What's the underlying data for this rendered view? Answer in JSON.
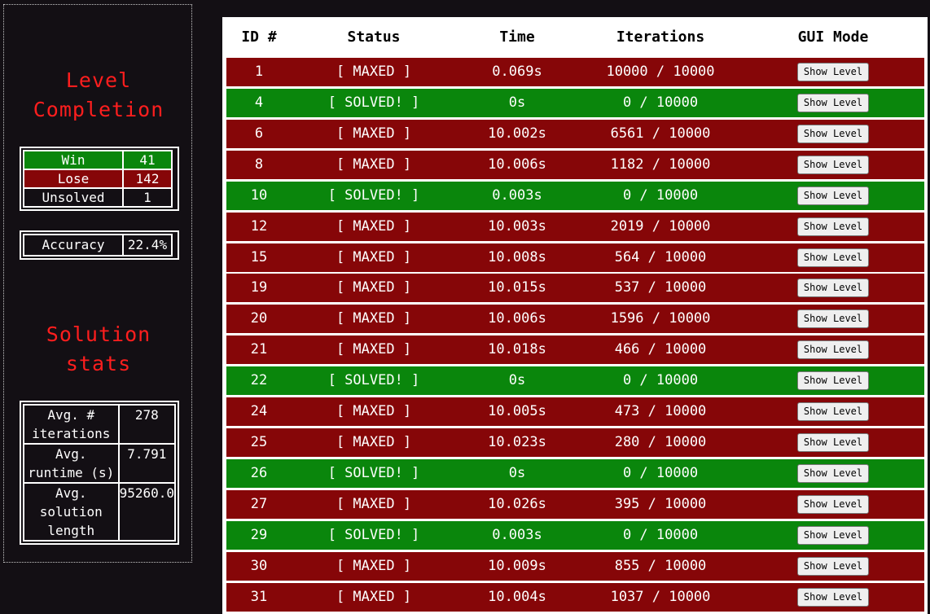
{
  "sidebar": {
    "completion_title_line1": "Level",
    "completion_title_line2": "Completion",
    "win_label": "Win",
    "win_value": "41",
    "lose_label": "Lose",
    "lose_value": "142",
    "unsolved_label": "Unsolved",
    "unsolved_value": "1",
    "accuracy_label": "Accuracy",
    "accuracy_value": "22.4%",
    "stats_title_line1": "Solution",
    "stats_title_line2": "stats",
    "avg_iter_label": "Avg. # iterations",
    "avg_iter_value": "278",
    "avg_runtime_label": "Avg. runtime (s)",
    "avg_runtime_value": "7.791",
    "avg_len_label": "Avg. solution length",
    "avg_len_value": "95260.0"
  },
  "table": {
    "headers": {
      "id": "ID #",
      "status": "Status",
      "time": "Time",
      "iterations": "Iterations",
      "gui": "GUI Mode"
    },
    "button_label": "Show Level",
    "colors": {
      "maxed": "#860608",
      "solved": "#0a860c"
    },
    "rows": [
      {
        "id": "1",
        "status": "[ MAXED ]",
        "time": "0.069s",
        "iterations": "10000 / 10000",
        "kind": "maxed"
      },
      {
        "id": "4",
        "status": "[ SOLVED! ]",
        "time": "0s",
        "iterations": "0 / 10000",
        "kind": "solved"
      },
      {
        "id": "6",
        "status": "[ MAXED ]",
        "time": "10.002s",
        "iterations": "6561 / 10000",
        "kind": "maxed"
      },
      {
        "id": "8",
        "status": "[ MAXED ]",
        "time": "10.006s",
        "iterations": "1182 / 10000",
        "kind": "maxed"
      },
      {
        "id": "10",
        "status": "[ SOLVED! ]",
        "time": "0.003s",
        "iterations": "0 / 10000",
        "kind": "solved"
      },
      {
        "id": "12",
        "status": "[ MAXED ]",
        "time": "10.003s",
        "iterations": "2019 / 10000",
        "kind": "maxed"
      },
      {
        "id": "15",
        "status": "[ MAXED ]",
        "time": "10.008s",
        "iterations": "564 / 10000",
        "kind": "maxed"
      },
      {
        "id": "19",
        "status": "[ MAXED ]",
        "time": "10.015s",
        "iterations": "537 / 10000",
        "kind": "maxed"
      },
      {
        "id": "20",
        "status": "[ MAXED ]",
        "time": "10.006s",
        "iterations": "1596 / 10000",
        "kind": "maxed"
      },
      {
        "id": "21",
        "status": "[ MAXED ]",
        "time": "10.018s",
        "iterations": "466 / 10000",
        "kind": "maxed"
      },
      {
        "id": "22",
        "status": "[ SOLVED! ]",
        "time": "0s",
        "iterations": "0 / 10000",
        "kind": "solved"
      },
      {
        "id": "24",
        "status": "[ MAXED ]",
        "time": "10.005s",
        "iterations": "473 / 10000",
        "kind": "maxed"
      },
      {
        "id": "25",
        "status": "[ MAXED ]",
        "time": "10.023s",
        "iterations": "280 / 10000",
        "kind": "maxed"
      },
      {
        "id": "26",
        "status": "[ SOLVED! ]",
        "time": "0s",
        "iterations": "0 / 10000",
        "kind": "solved"
      },
      {
        "id": "27",
        "status": "[ MAXED ]",
        "time": "10.026s",
        "iterations": "395 / 10000",
        "kind": "maxed"
      },
      {
        "id": "29",
        "status": "[ SOLVED! ]",
        "time": "0.003s",
        "iterations": "0 / 10000",
        "kind": "solved"
      },
      {
        "id": "30",
        "status": "[ MAXED ]",
        "time": "10.009s",
        "iterations": "855 / 10000",
        "kind": "maxed"
      },
      {
        "id": "31",
        "status": "[ MAXED ]",
        "time": "10.004s",
        "iterations": "1037 / 10000",
        "kind": "maxed"
      }
    ]
  }
}
